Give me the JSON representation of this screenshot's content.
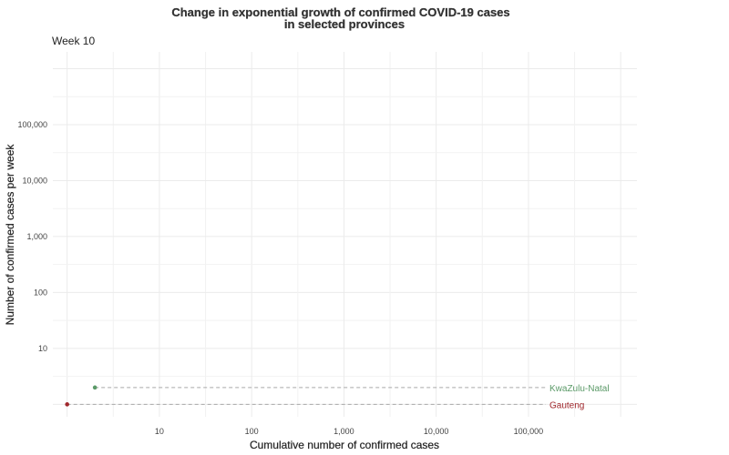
{
  "chart_data": {
    "type": "scatter",
    "title_line1": "Change in exponential growth of confirmed COVID-19 cases",
    "title_line2": "in selected provinces",
    "subtitle": "Week 10",
    "xlabel": "Cumulative number of confirmed cases",
    "ylabel": "Number of confirmed cases per week",
    "x_scale": "log10",
    "y_scale": "log10",
    "xlim": [
      0.7,
      1500000
    ],
    "ylim": [
      0.6,
      2000000
    ],
    "x_ticks": [
      10,
      100,
      1000,
      10000,
      100000
    ],
    "x_tick_labels": [
      "10",
      "100",
      "1,000",
      "10,000",
      "100,000"
    ],
    "y_ticks": [
      10,
      100,
      1000,
      10000,
      100000
    ],
    "y_tick_labels": [
      "10",
      "100",
      "1,000",
      "10,000",
      "100,000"
    ],
    "grid": true,
    "series": [
      {
        "name": "KwaZulu-Natal",
        "color": "#5b9a68",
        "x": 2,
        "y": 2
      },
      {
        "name": "Gauteng",
        "color": "#a0282d",
        "x": 1,
        "y": 1
      }
    ]
  }
}
